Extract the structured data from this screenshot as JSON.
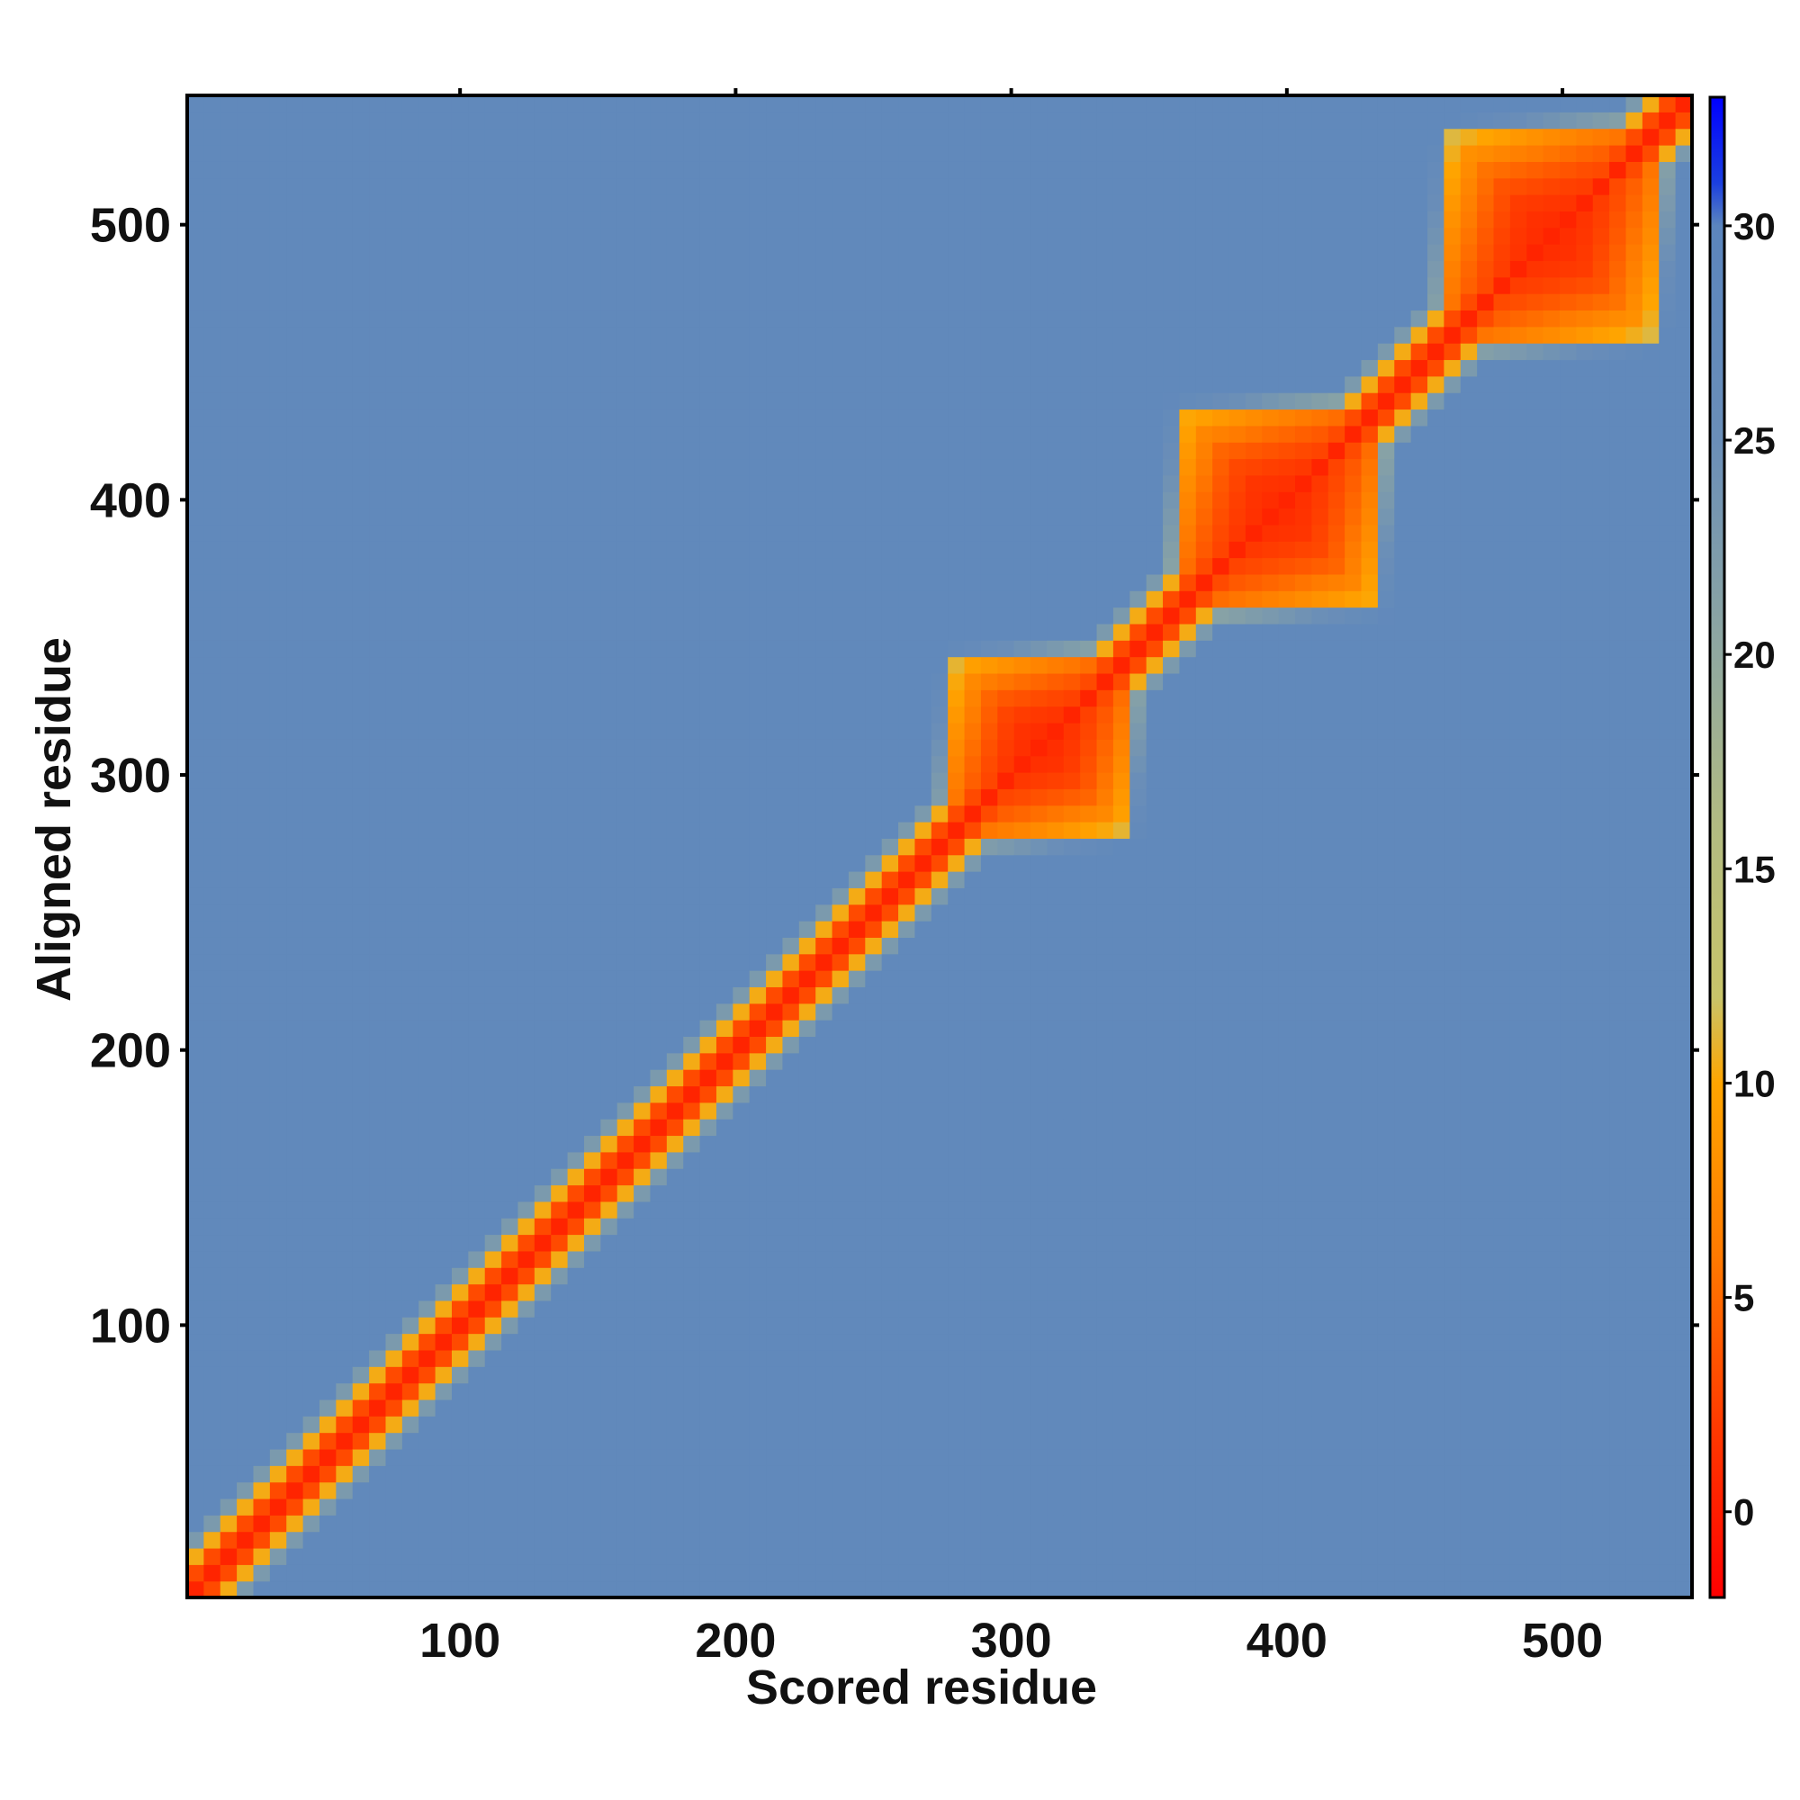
{
  "chart_data": {
    "type": "heatmap",
    "title": "",
    "xlabel": "Scored residue",
    "ylabel": "Aligned residue",
    "xlim": [
      1,
      547
    ],
    "ylim": [
      1,
      547
    ],
    "x_ticks": [
      100,
      200,
      300,
      400,
      500
    ],
    "y_ticks": [
      100,
      200,
      300,
      400,
      500
    ],
    "colorbar": {
      "range": [
        -2,
        33
      ],
      "ticks": [
        0,
        5,
        10,
        15,
        20,
        25,
        30
      ],
      "stops": [
        {
          "value": -2,
          "color": "#ff0000"
        },
        {
          "value": 2,
          "color": "#ff3a00"
        },
        {
          "value": 6,
          "color": "#ff7a00"
        },
        {
          "value": 10,
          "color": "#ffa500"
        },
        {
          "value": 12,
          "color": "#c8c46a"
        },
        {
          "value": 16,
          "color": "#b2bb82"
        },
        {
          "value": 20,
          "color": "#90a8a0"
        },
        {
          "value": 25,
          "color": "#6a8eb8"
        },
        {
          "value": 30,
          "color": "#5b85bd"
        },
        {
          "value": 31,
          "color": "#1b3fe0"
        },
        {
          "value": 33,
          "color": "#0000ff"
        }
      ]
    },
    "diagonal_value": 0.5,
    "background_value": 28,
    "domains": [
      {
        "start": 280,
        "end": 342,
        "core": 1,
        "edge": 9
      },
      {
        "start": 362,
        "end": 432,
        "core": 1,
        "edge": 9
      },
      {
        "start": 460,
        "end": 532,
        "core": 1,
        "edge": 9
      }
    ],
    "diagonal_width": 5
  }
}
